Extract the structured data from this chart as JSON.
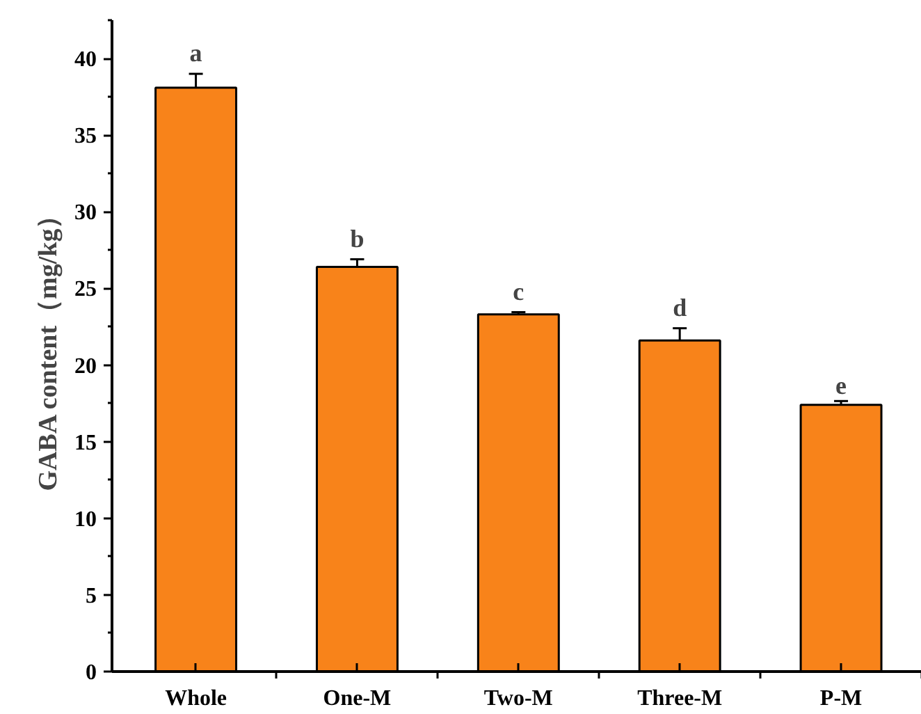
{
  "chart_data": {
    "type": "bar",
    "ylabel": "GABA content（mg/kg）",
    "categories": [
      "Whole",
      "One-M",
      "Two-M",
      "Three-M",
      "P-M"
    ],
    "values": [
      38.1,
      26.4,
      23.3,
      21.6,
      17.4
    ],
    "errors": [
      0.9,
      0.5,
      0.15,
      0.8,
      0.25
    ],
    "color": "#f8831a",
    "ylim": [
      0,
      42.5
    ],
    "yticks": [
      0,
      5,
      10,
      15,
      20,
      25,
      30,
      35,
      40
    ],
    "grid": false,
    "annotations": [
      {
        "text": "a",
        "x": "Whole",
        "y": 38.1
      },
      {
        "text": "b",
        "x": "One-M",
        "y": 26.4
      },
      {
        "text": "c",
        "x": "Two-M",
        "y": 23.3
      },
      {
        "text": "d",
        "x": "Three-M",
        "y": 21.6
      },
      {
        "text": "e",
        "x": "P-M",
        "y": 17.4
      }
    ]
  }
}
